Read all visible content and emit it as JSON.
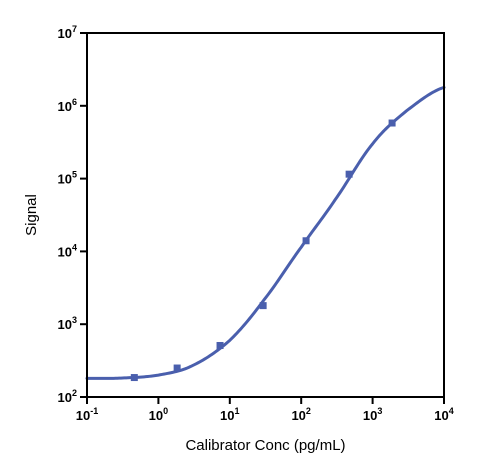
{
  "chart_data": {
    "type": "scatter",
    "title": "",
    "xlabel": "Calibrator Conc (pg/mL)",
    "ylabel": "Signal",
    "x_scale": "log",
    "y_scale": "log",
    "xlim": [
      0.1,
      10000
    ],
    "ylim": [
      100,
      10000000
    ],
    "x_ticks": [
      {
        "base": "10",
        "exp": "-1",
        "value": 0.1
      },
      {
        "base": "10",
        "exp": "0",
        "value": 1
      },
      {
        "base": "10",
        "exp": "1",
        "value": 10
      },
      {
        "base": "10",
        "exp": "2",
        "value": 100
      },
      {
        "base": "10",
        "exp": "3",
        "value": 1000
      },
      {
        "base": "10",
        "exp": "4",
        "value": 10000
      }
    ],
    "y_ticks": [
      {
        "base": "10",
        "exp": "2",
        "value": 100
      },
      {
        "base": "10",
        "exp": "3",
        "value": 1000
      },
      {
        "base": "10",
        "exp": "4",
        "value": 10000
      },
      {
        "base": "10",
        "exp": "5",
        "value": 100000
      },
      {
        "base": "10",
        "exp": "6",
        "value": 1000000
      },
      {
        "base": "10",
        "exp": "7",
        "value": 10000000
      }
    ],
    "grid": false,
    "legend": "none",
    "series": [
      {
        "type": "scatter",
        "marker": "square",
        "color": "#4a5fad",
        "x": [
          0.46,
          1.83,
          7.3,
          29.3,
          117,
          469,
          1875
        ],
        "y": [
          185,
          250,
          510,
          1800,
          14000,
          115000,
          580000
        ]
      },
      {
        "type": "line",
        "fit": "4PL",
        "color": "#4a5fad",
        "x": [
          0.1,
          0.3,
          1,
          3,
          10,
          30,
          100,
          300,
          1000,
          3000,
          10000
        ],
        "y": [
          180,
          182,
          200,
          270,
          600,
          2150,
          11400,
          51600,
          300000,
          856000,
          1790000
        ]
      }
    ]
  }
}
